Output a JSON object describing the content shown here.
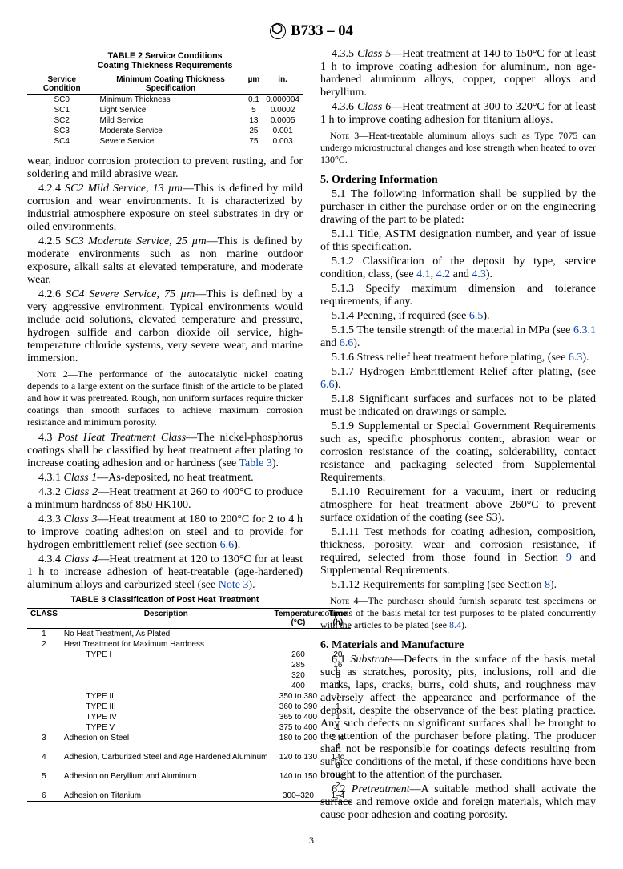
{
  "header": {
    "designation": "B733 – 04"
  },
  "table2": {
    "title1": "TABLE 2  Service Conditions",
    "title2": "Coating Thickness Requirements",
    "head_a": "Service Condition",
    "head_b": "Minimum Coating Thickness Specification",
    "head_c": "µm",
    "head_d": "in.",
    "rows": [
      {
        "a": "SC0",
        "b": "Minimum Thickness",
        "c": "0.1",
        "d": "0.000004"
      },
      {
        "a": "SC1",
        "b": "Light Service",
        "c": "5",
        "d": "0.0002"
      },
      {
        "a": "SC2",
        "b": "Mild Service",
        "c": "13",
        "d": "0.0005"
      },
      {
        "a": "SC3",
        "b": "Moderate Service",
        "c": "25",
        "d": "0.001"
      },
      {
        "a": "SC4",
        "b": "Severe Service",
        "c": "75",
        "d": "0.003"
      }
    ]
  },
  "para": {
    "p0": "wear, indoor corrosion protection to prevent rusting, and for soldering and mild abrasive wear.",
    "p1a": "4.2.4 ",
    "p1i": "SC2 Mild Service, 13 µm",
    "p1b": "—This is defined by mild corrosion and wear environments. It is characterized by industrial atmosphere exposure on steel substrates in dry or oiled environments.",
    "p2a": "4.2.5 ",
    "p2i": "SC3 Moderate Service, 25 µm",
    "p2b": "—This is defined by moderate environments such as non marine outdoor exposure, alkali salts at elevated temperature, and moderate wear.",
    "p3a": "4.2.6 ",
    "p3i": "SC4 Severe Service, 75 µm",
    "p3b": "—This is defined by a very aggressive environment. Typical environments would include acid solutions, elevated temperature and pressure, hydrogen sulfide and carbon dioxide oil service, high-temperature chloride systems, very severe wear, and marine immersion.",
    "n2label": "Note",
    "n2num": " 2—",
    "n2": "The performance of the autocatalytic nickel coating depends to a large extent on the surface finish of the article to be plated and how it was pretreated. Rough, non uniform surfaces require thicker coatings than smooth surfaces to achieve maximum corrosion resistance and minimum porosity.",
    "p4a": "4.3 ",
    "p4i": "Post Heat Treatment Class",
    "p4b": "—The nickel-phosphorus coatings shall be classified by heat treatment after plating to increase coating adhesion and or hardness (see ",
    "p4x": "Table 3",
    "p4c": ").",
    "p5a": "4.3.1 ",
    "p5i": "Class 1",
    "p5b": "—As-deposited, no heat treatment.",
    "p6a": "4.3.2 ",
    "p6i": "Class 2",
    "p6b": "—Heat treatment at 260 to 400°C to produce a minimum hardness of 850 HK100.",
    "p7a": "4.3.3 ",
    "p7i": "Class 3",
    "p7b": "—Heat treatment at 180 to 200°C for 2 to 4 h to improve coating adhesion on steel and to provide for hydrogen embrittlement relief (see section ",
    "p7x": "6.6",
    "p7c": ").",
    "p8a": "4.3.4 ",
    "p8i": "Class 4",
    "p8b": "—Heat treatment at 120 to 130°C for at least 1 h to increase adhesion of heat-treatable (age-hardened) aluminum alloys and carburized steel (see ",
    "p8x": "Note 3",
    "p8c": ").",
    "p9a": "4.3.5 ",
    "p9i": "Class 5",
    "p9b": "—Heat treatment at 140 to 150°C for at least 1 h to improve coating adhesion for aluminum, non age-hardened aluminum alloys, copper, copper alloys and beryllium.",
    "p10a": "4.3.6 ",
    "p10i": "Class 6",
    "p10b": "—Heat treatment at 300 to 320°C for at least 1 h to improve coating adhesion for titanium alloys.",
    "n3label": "Note",
    "n3num": " 3—",
    "n3": "Heat-treatable aluminum alloys such as Type 7075 can undergo microstructural changes and lose strength when heated to over 130°C."
  },
  "sec5": {
    "head": "5. Ordering Information",
    "s1": "5.1 The following information shall be supplied by the purchaser in either the purchase order or on the engineering drawing of the part to be plated:",
    "s11": "5.1.1 Title, ASTM designation number, and year of issue of this specification.",
    "s12a": "5.1.2 Classification of the deposit by type, service condition, class, (see ",
    "s12x1": "4.1",
    "s12c1": ", ",
    "s12x2": "4.2",
    "s12c2": " and ",
    "s12x3": "4.3",
    "s12e": ").",
    "s13": "5.1.3 Specify maximum dimension and tolerance requirements, if any.",
    "s14a": "5.1.4 Peening, if required (see ",
    "s14x": "6.5",
    "s14e": ").",
    "s15a": "5.1.5 The tensile strength of the material in MPa (see ",
    "s15x1": "6.3.1",
    "s15c": " and ",
    "s15x2": "6.6",
    "s15e": ").",
    "s16a": "5.1.6 Stress relief heat treatment before plating, (see ",
    "s16x": "6.3",
    "s16e": ").",
    "s17a": "5.1.7 Hydrogen Embrittlement Relief after plating, (see ",
    "s17x": "6.6",
    "s17e": ").",
    "s18": "5.1.8 Significant surfaces and surfaces not to be plated must be indicated on drawings or sample.",
    "s19": "5.1.9 Supplemental or Special Government Requirements such as, specific phosphorus content, abrasion wear or corrosion resistance of the coating, solderability, contact resistance and packaging selected from Supplemental Requirements.",
    "s110": "5.1.10 Requirement for a vacuum, inert or reducing atmosphere for heat treatment above 260°C to prevent surface oxidation of the coating (see S3).",
    "s111a": "5.1.11 Test methods for coating adhesion, composition, thickness, porosity, wear and corrosion resistance, if required, selected from those found in Section ",
    "s111x": "9",
    "s111e": " and Supplemental Requirements.",
    "s112a": "5.1.12 Requirements for sampling (see Section ",
    "s112x": "8",
    "s112e": ").",
    "n4label": "Note",
    "n4num": " 4—",
    "n4a": "The purchaser should furnish separate test specimens or coupons of the basis metal for test purposes to be plated concurrently with the articles to be plated (see ",
    "n4x": "8.4",
    "n4e": ")."
  },
  "sec6": {
    "head": "6. Materials and Manufacture",
    "s1a": "6.1 ",
    "s1i": "Substrate",
    "s1b": "—Defects in the surface of the basis metal such as scratches, porosity, pits, inclusions, roll and die marks, laps, cracks, burrs, cold shuts, and roughness may adversely affect the appearance and performance of the deposit, despite the observance of the best plating practice. Any such defects on significant surfaces shall be brought to the attention of the purchaser before plating. The producer shall not be responsible for coatings defects resulting from surface conditions of the metal, if these conditions have been brought to the attention of the purchaser.",
    "s2a": "6.2 ",
    "s2i": "Pretreatment",
    "s2b": "—A suitable method shall activate the surface and remove oxide and foreign materials, which may cause poor adhesion and coating porosity."
  },
  "table3": {
    "title": "TABLE 3  Classification of Post Heat Treatment",
    "head_a": "CLASS",
    "head_b": "Description",
    "head_c": "Temperature (°C)",
    "head_d": "Time (h)",
    "rows": [
      {
        "a": "1",
        "b": "No Heat Treatment, As Plated",
        "c": "",
        "d": ""
      },
      {
        "a": "2",
        "b": "Heat Treatment for Maximum Hardness",
        "c": "",
        "d": ""
      },
      {
        "a": "",
        "b": "          TYPE I",
        "c": "260",
        "d": "20"
      },
      {
        "a": "",
        "b": "",
        "c": "285",
        "d": "16"
      },
      {
        "a": "",
        "b": "",
        "c": "320",
        "d": "8"
      },
      {
        "a": "",
        "b": "",
        "c": "400",
        "d": "1"
      },
      {
        "a": "",
        "b": "          TYPE II",
        "c": "350 to 380",
        "d": "1"
      },
      {
        "a": "",
        "b": "          TYPE III",
        "c": "360 to 390",
        "d": "1"
      },
      {
        "a": "",
        "b": "          TYPE IV",
        "c": "365 to 400",
        "d": "1"
      },
      {
        "a": "",
        "b": "          TYPE V",
        "c": "375 to 400",
        "d": "1"
      },
      {
        "a": "3",
        "b": "Adhesion on Steel",
        "c": "180 to 200",
        "d": "2 to 4"
      },
      {
        "a": "4",
        "b": "Adhesion, Carburized Steel and Age Hardened Aluminum",
        "c": "120 to 130",
        "d": "1 to 6"
      },
      {
        "a": "5",
        "b": "Adhesion on Beryllium and Aluminum",
        "c": "140 to 150",
        "d": "1 to 2"
      },
      {
        "a": "6",
        "b": "Adhesion on Titanium",
        "c": "300–320",
        "d": "1–4"
      }
    ]
  },
  "pagenum": "3"
}
